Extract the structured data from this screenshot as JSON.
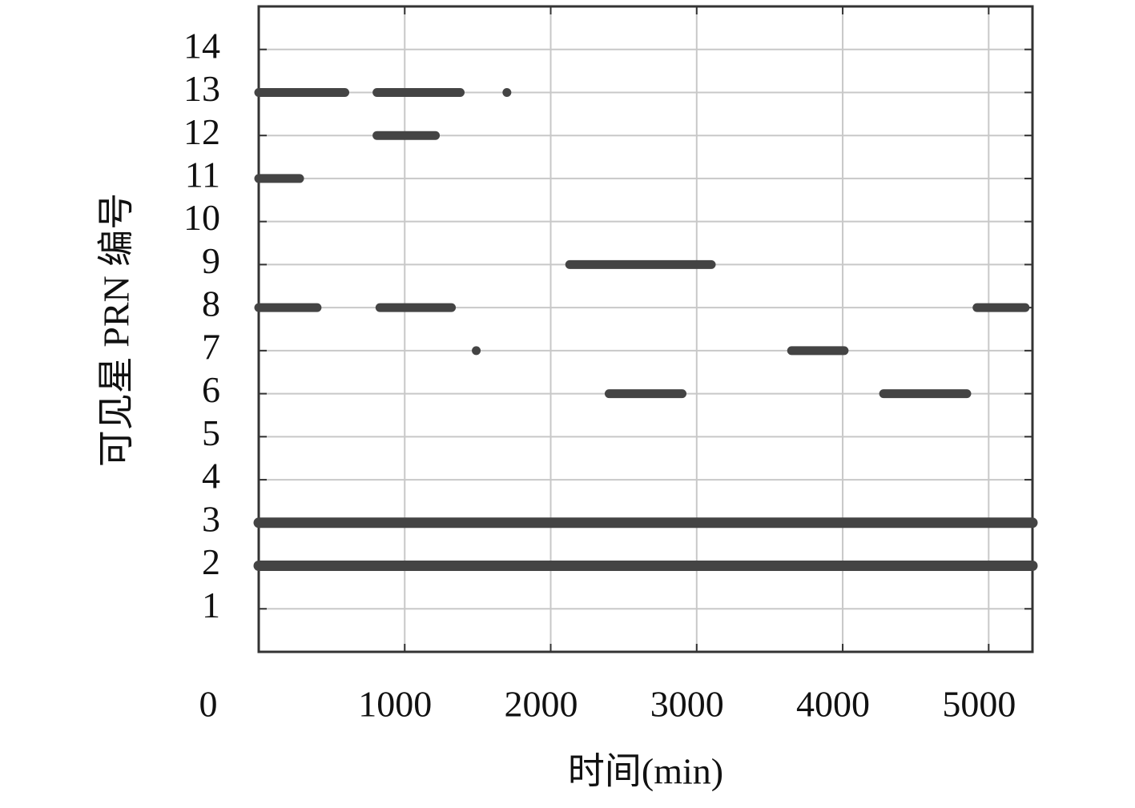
{
  "chart_data": {
    "type": "segments",
    "xlabel": "时间(min)",
    "ylabel": "可见星 PRN 编号",
    "xlim": [
      0,
      5300
    ],
    "xticks": [
      0,
      1000,
      2000,
      3000,
      4000,
      5000
    ],
    "ylim": [
      0,
      15
    ],
    "yticks": [
      1,
      2,
      3,
      4,
      5,
      6,
      7,
      8,
      9,
      10,
      11,
      12,
      13,
      14
    ],
    "grid": true,
    "color": "#444444",
    "segments": [
      {
        "prn": 13,
        "start": 0,
        "end": 590
      },
      {
        "prn": 13,
        "start": 810,
        "end": 1380
      },
      {
        "prn": 13,
        "start": 1700,
        "end": 1700
      },
      {
        "prn": 12,
        "start": 810,
        "end": 1210
      },
      {
        "prn": 11,
        "start": 0,
        "end": 280
      },
      {
        "prn": 9,
        "start": 2130,
        "end": 3100
      },
      {
        "prn": 8,
        "start": 0,
        "end": 400
      },
      {
        "prn": 8,
        "start": 830,
        "end": 1320
      },
      {
        "prn": 8,
        "start": 4920,
        "end": 5250
      },
      {
        "prn": 7,
        "start": 1490,
        "end": 1490
      },
      {
        "prn": 7,
        "start": 3650,
        "end": 4010
      },
      {
        "prn": 6,
        "start": 2400,
        "end": 2900
      },
      {
        "prn": 6,
        "start": 4280,
        "end": 4850
      },
      {
        "prn": 3,
        "start": 0,
        "end": 5300
      },
      {
        "prn": 2,
        "start": 0,
        "end": 5300
      }
    ]
  }
}
